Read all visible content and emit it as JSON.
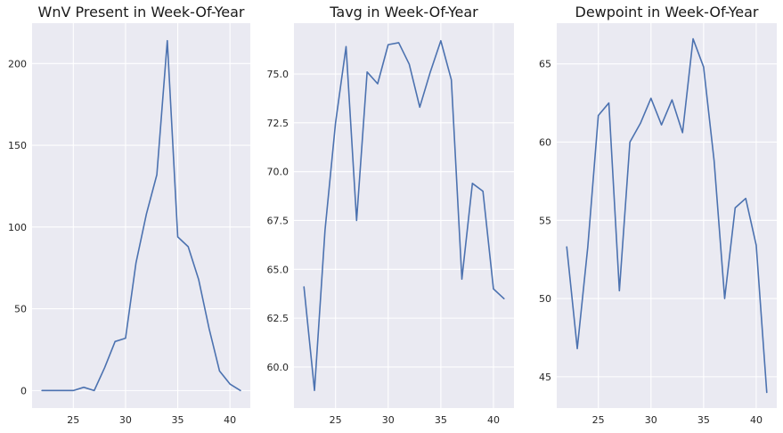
{
  "chart_data": [
    {
      "type": "line",
      "title": "WnV Present in Week-Of-Year",
      "xlabel": "",
      "ylabel": "",
      "xlim": [
        21.05,
        41.95
      ],
      "ylim": [
        -10.7,
        224.7
      ],
      "xticks": [
        25,
        30,
        35,
        40
      ],
      "yticks": [
        0,
        50,
        100,
        150,
        200
      ],
      "ytick_labels": [
        "0",
        "50",
        "100",
        "150",
        "200"
      ],
      "grid": true,
      "x": [
        22,
        23,
        24,
        25,
        26,
        27,
        28,
        29,
        30,
        31,
        32,
        33,
        34,
        35,
        36,
        37,
        38,
        39,
        40,
        41
      ],
      "series": [
        {
          "values": [
            0,
            0,
            0,
            0,
            2,
            0,
            14,
            30,
            32,
            78,
            108,
            132,
            214,
            94,
            88,
            68,
            38,
            12,
            4,
            0
          ],
          "color": "#4c72b0"
        }
      ]
    },
    {
      "type": "line",
      "title": "Tavg in Week-Of-Year",
      "xlabel": "",
      "ylabel": "",
      "xlim": [
        21.05,
        41.95
      ],
      "ylim": [
        57.9,
        77.6
      ],
      "xticks": [
        25,
        30,
        35,
        40
      ],
      "yticks": [
        60.0,
        62.5,
        65.0,
        67.5,
        70.0,
        72.5,
        75.0
      ],
      "ytick_labels": [
        "60.0",
        "62.5",
        "65.0",
        "67.5",
        "70.0",
        "72.5",
        "75.0"
      ],
      "grid": true,
      "x": [
        22,
        23,
        24,
        25,
        26,
        27,
        28,
        29,
        30,
        31,
        32,
        33,
        34,
        35,
        36,
        37,
        38,
        39,
        40,
        41
      ],
      "series": [
        {
          "values": [
            64.1,
            58.8,
            67.0,
            72.5,
            76.4,
            67.5,
            75.1,
            74.5,
            76.5,
            76.6,
            75.5,
            73.3,
            75.1,
            76.7,
            74.7,
            64.5,
            69.4,
            69.0,
            64.0,
            63.5
          ],
          "color": "#4c72b0"
        }
      ]
    },
    {
      "type": "line",
      "title": "Dewpoint in Week-Of-Year",
      "xlabel": "",
      "ylabel": "",
      "xlim": [
        21.05,
        41.95
      ],
      "ylim": [
        43.0,
        67.6
      ],
      "xticks": [
        25,
        30,
        35,
        40
      ],
      "yticks": [
        45,
        50,
        55,
        60,
        65
      ],
      "ytick_labels": [
        "45",
        "50",
        "55",
        "60",
        "65"
      ],
      "grid": true,
      "x": [
        22,
        23,
        24,
        25,
        26,
        27,
        28,
        29,
        30,
        31,
        32,
        33,
        34,
        35,
        36,
        37,
        38,
        39,
        40,
        41
      ],
      "series": [
        {
          "values": [
            53.3,
            46.8,
            53.3,
            61.7,
            62.5,
            50.5,
            60.0,
            61.2,
            62.8,
            61.1,
            62.7,
            60.6,
            66.6,
            64.8,
            58.8,
            50.0,
            55.8,
            56.4,
            53.4,
            44.0
          ],
          "color": "#4c72b0"
        }
      ]
    }
  ]
}
